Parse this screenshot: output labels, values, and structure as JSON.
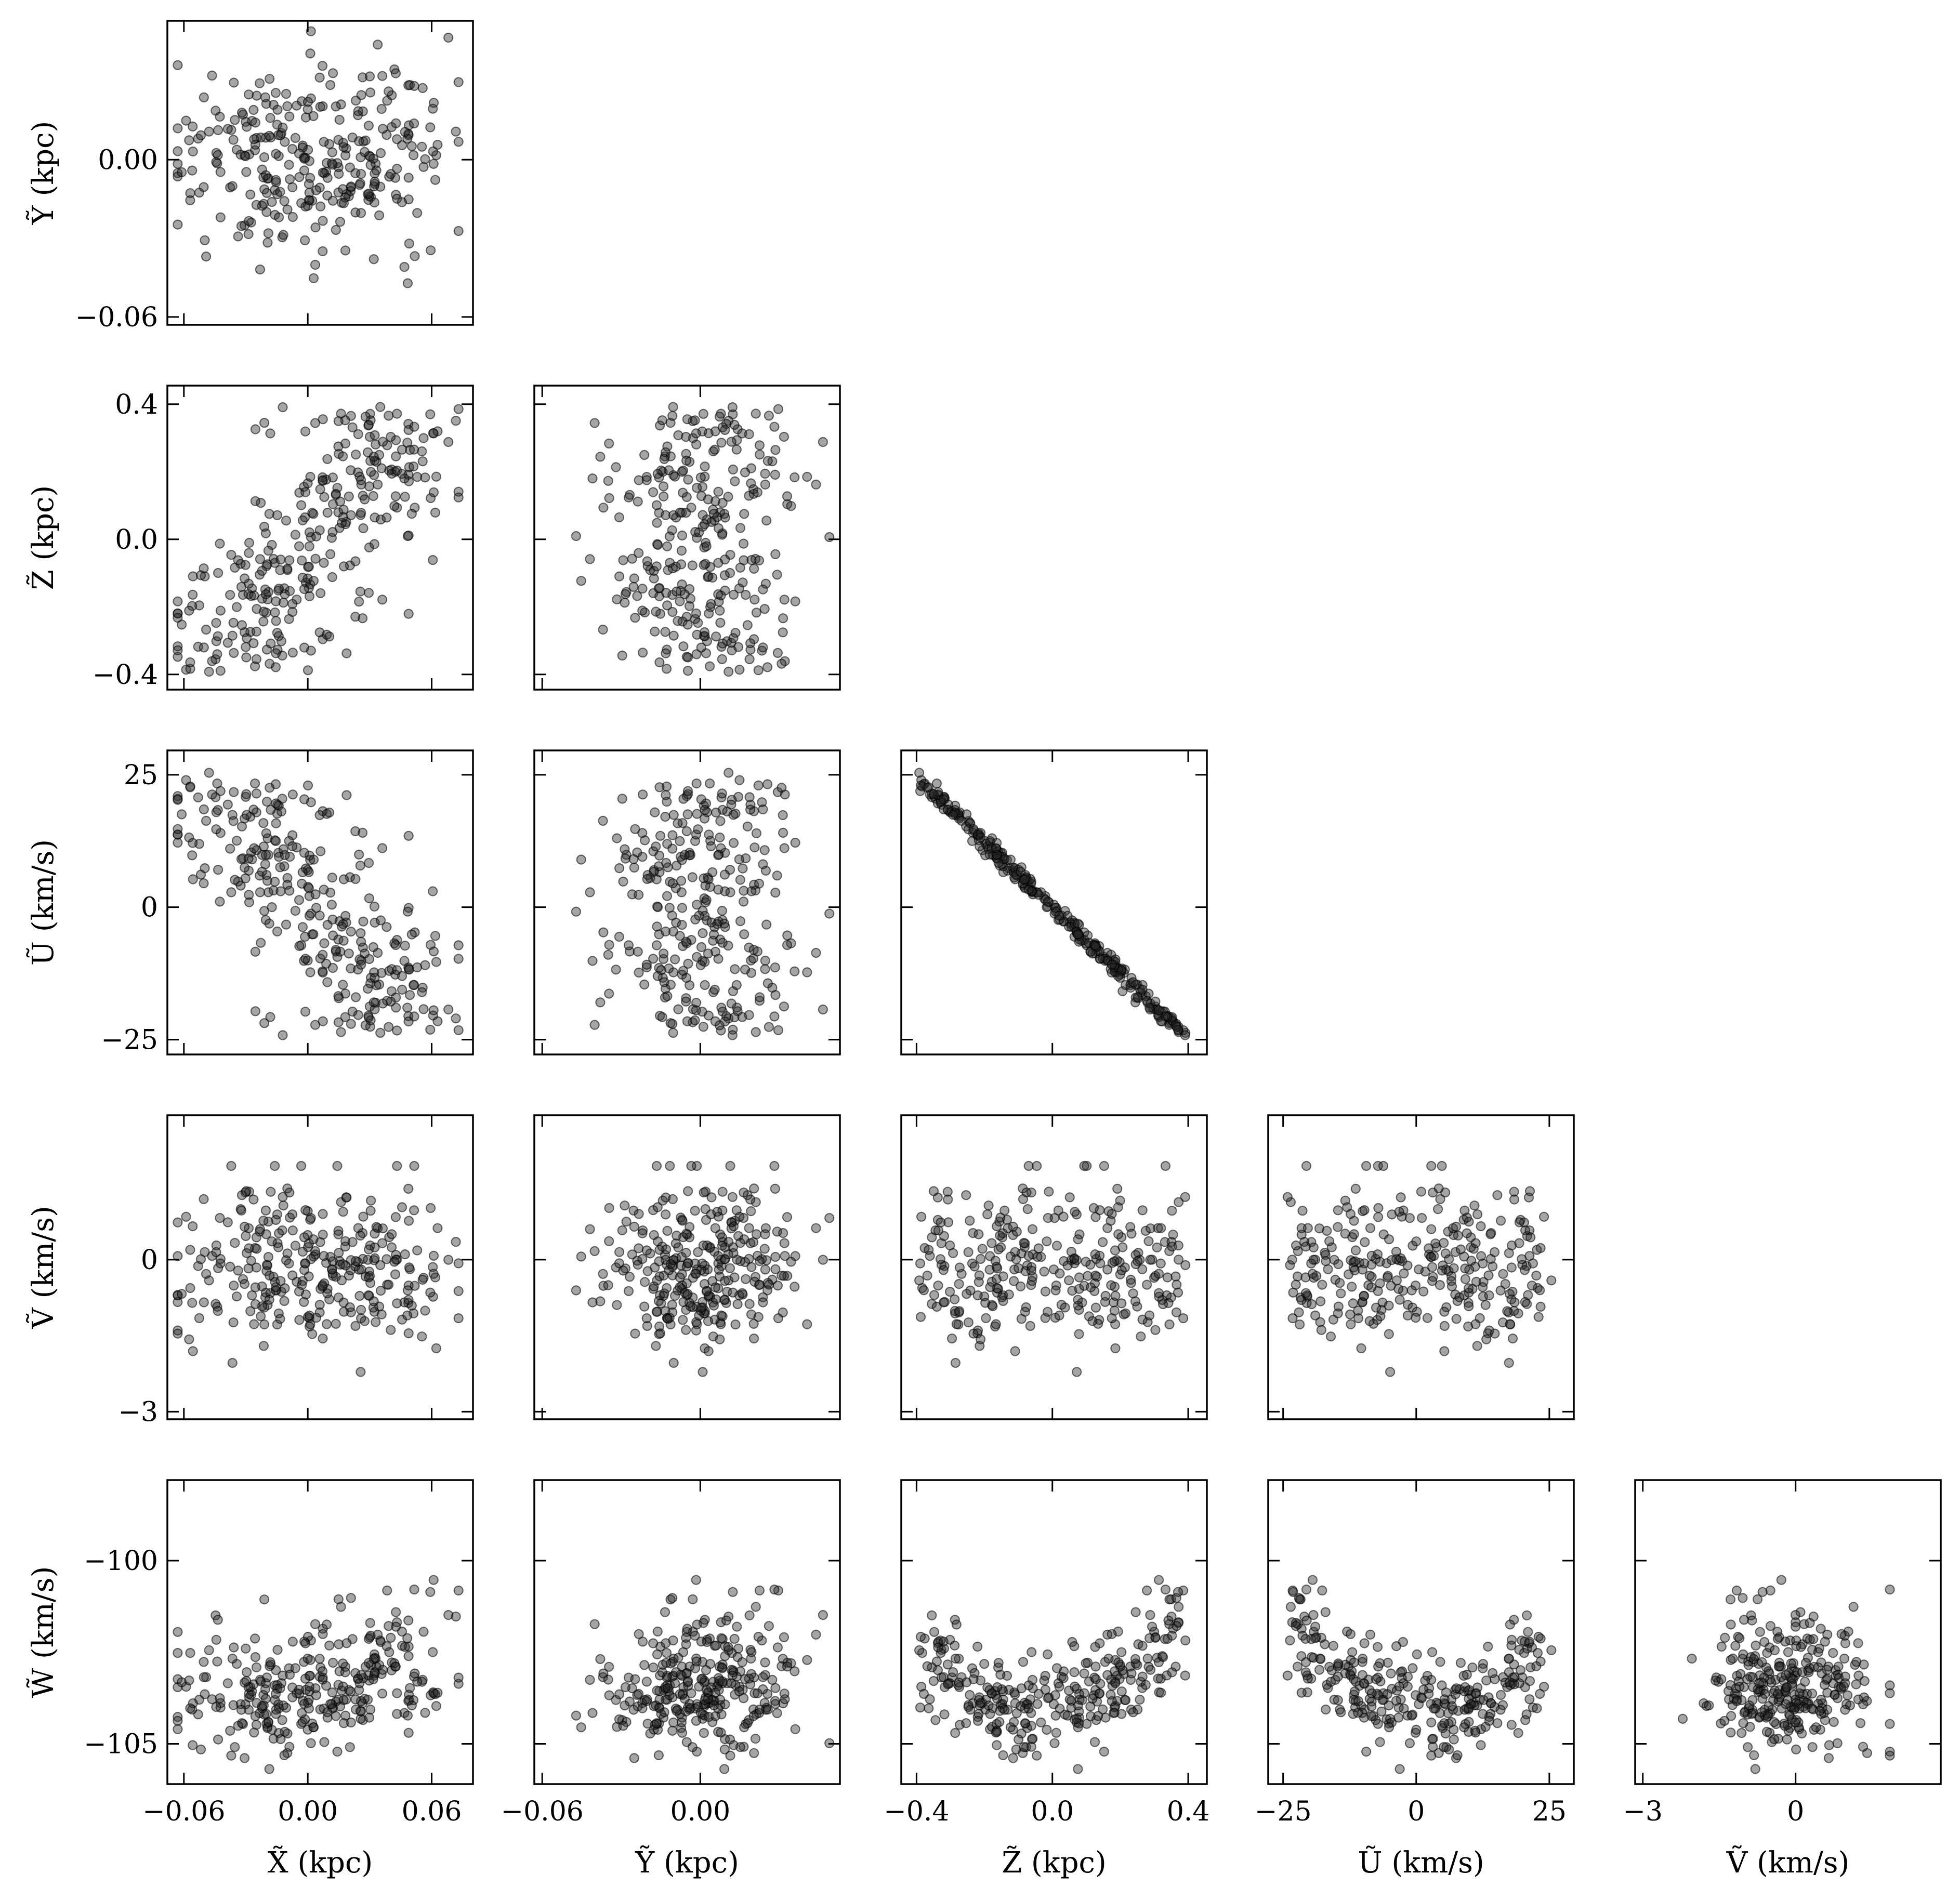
{
  "chart_data": {
    "type": "scatter",
    "layout": "corner-plot",
    "variables": [
      {
        "key": "X",
        "label": "X̃ (kpc)",
        "lim": [
          -0.068,
          0.08
        ],
        "ticks": [
          -0.06,
          0.0,
          0.06
        ],
        "tick_labels": [
          "−0.06",
          "0.00",
          "0.06"
        ]
      },
      {
        "key": "Y",
        "label": "Ỹ (kpc)",
        "lim": [
          -0.063,
          0.053
        ],
        "ticks": [
          -0.06,
          0.0
        ],
        "tick_labels": [
          "−0.06",
          "0.00"
        ]
      },
      {
        "key": "Z",
        "label": "Z̃ (kpc)",
        "lim": [
          -0.445,
          0.455
        ],
        "ticks": [
          -0.4,
          0.0,
          0.4
        ],
        "tick_labels": [
          "−0.4",
          "0.0",
          "0.4"
        ]
      },
      {
        "key": "U",
        "label": "Ũ (km/s)",
        "lim": [
          -27.8,
          29.6
        ],
        "ticks": [
          -25,
          0,
          25
        ],
        "tick_labels": [
          "−25",
          "0",
          "25"
        ]
      },
      {
        "key": "V",
        "label": "Ṽ (km/s)",
        "lim": [
          -3.15,
          2.85
        ],
        "ticks": [
          -3,
          0
        ],
        "tick_labels": [
          "−3",
          "0"
        ]
      },
      {
        "key": "W",
        "label": "W̃ (km/s)",
        "lim": [
          -106.1,
          -97.8
        ],
        "ticks": [
          -105,
          -100
        ],
        "tick_labels": [
          "−105",
          "−100"
        ]
      }
    ],
    "n_points": 300,
    "marker": "circle",
    "alpha": 0.4,
    "sample_points": [
      {
        "X": -0.012,
        "Y": 0.005,
        "Z": 0.1,
        "U": -12.5,
        "V": -0.4,
        "W": -102.0
      },
      {
        "X": 0.03,
        "Y": 0.02,
        "Z": 0.32,
        "U": -20.5,
        "V": 0.6,
        "W": -101.0
      },
      {
        "X": -0.04,
        "Y": -0.015,
        "Z": -0.3,
        "U": 18.5,
        "V": -1.2,
        "W": -101.5
      },
      {
        "X": 0.055,
        "Y": 0.0,
        "Z": 0.38,
        "U": -24.0,
        "V": 0.5,
        "W": -100.6
      },
      {
        "X": 0.005,
        "Y": -0.02,
        "Z": -0.05,
        "U": 3.0,
        "V": -0.2,
        "W": -103.6
      },
      {
        "X": -0.025,
        "Y": 0.03,
        "Z": 0.22,
        "U": -15.5,
        "V": 1.1,
        "W": -102.3
      }
    ]
  }
}
